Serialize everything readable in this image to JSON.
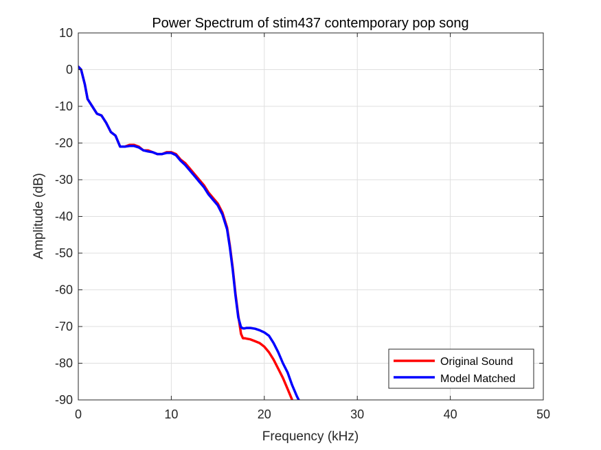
{
  "chart_data": {
    "type": "line",
    "title": "Power Spectrum of stim437 contemporary pop song",
    "xlabel": "Frequency (kHz)",
    "ylabel": "Amplitude (dB)",
    "xlim": [
      0,
      50
    ],
    "ylim": [
      -90,
      10
    ],
    "xticks": [
      0,
      10,
      20,
      30,
      40,
      50
    ],
    "yticks": [
      10,
      0,
      -10,
      -20,
      -30,
      -40,
      -50,
      -60,
      -70,
      -80,
      -90
    ],
    "grid": true,
    "legend_position": "bottom-right",
    "series": [
      {
        "name": "Original Sound",
        "color": "#ff0000",
        "x": [
          0,
          0.3,
          0.7,
          1.0,
          1.5,
          2.0,
          2.5,
          3.0,
          3.5,
          4.0,
          4.5,
          5.0,
          5.5,
          6.0,
          6.5,
          7.0,
          7.5,
          8.0,
          8.5,
          9.0,
          9.5,
          10.0,
          10.5,
          11.0,
          11.5,
          12.0,
          12.5,
          13.0,
          13.5,
          14.0,
          14.5,
          15.0,
          15.5,
          16.0,
          16.3,
          16.6,
          16.9,
          17.2,
          17.5,
          17.7,
          17.9,
          18.1,
          18.5,
          19.0,
          19.5,
          20.0,
          20.5,
          21.0,
          21.5,
          22.0,
          22.5,
          23.0,
          23.5,
          24.0
        ],
        "y": [
          0.8,
          0,
          -4,
          -8,
          -10,
          -12,
          -12.5,
          -14.5,
          -17,
          -18,
          -21,
          -21,
          -20.5,
          -20.5,
          -21,
          -22,
          -22,
          -22.5,
          -23,
          -23,
          -22.5,
          -22.5,
          -23,
          -24.5,
          -25.5,
          -27,
          -28.5,
          -30,
          -31.5,
          -33.5,
          -35,
          -36.5,
          -39,
          -43,
          -48,
          -54,
          -61,
          -67,
          -72,
          -73.2,
          -73.2,
          -73.3,
          -73.5,
          -74,
          -74.5,
          -75.5,
          -77,
          -79,
          -81.5,
          -84,
          -87,
          -90,
          -93,
          -96
        ]
      },
      {
        "name": "Model Matched",
        "color": "#0000ff",
        "x": [
          0,
          0.3,
          0.7,
          1.0,
          1.5,
          2.0,
          2.5,
          3.0,
          3.5,
          4.0,
          4.5,
          5.0,
          5.5,
          6.0,
          6.5,
          7.0,
          7.5,
          8.0,
          8.5,
          9.0,
          9.5,
          10.0,
          10.5,
          11.0,
          11.5,
          12.0,
          12.5,
          13.0,
          13.5,
          14.0,
          14.5,
          15.0,
          15.5,
          16.0,
          16.3,
          16.6,
          16.9,
          17.2,
          17.5,
          17.7,
          17.9,
          18.1,
          18.5,
          19.0,
          19.5,
          20.0,
          20.5,
          21.0,
          21.5,
          22.0,
          22.5,
          23.0,
          23.5,
          24.0,
          24.3
        ],
        "y": [
          0.8,
          0,
          -4,
          -8,
          -10,
          -12,
          -12.5,
          -14.5,
          -17,
          -18,
          -21,
          -21,
          -20.8,
          -20.8,
          -21.2,
          -22,
          -22.3,
          -22.5,
          -23,
          -23,
          -22.7,
          -22.7,
          -23.3,
          -24.8,
          -26,
          -27.5,
          -29,
          -30.5,
          -32,
          -34,
          -35.5,
          -37,
          -39.5,
          -43.5,
          -48.5,
          -54.5,
          -61.5,
          -67.5,
          -70.2,
          -70.5,
          -70.5,
          -70.4,
          -70.4,
          -70.6,
          -71,
          -71.6,
          -72.5,
          -74.5,
          -77,
          -80,
          -82.5,
          -86,
          -89,
          -91.5,
          -94
        ]
      }
    ]
  }
}
